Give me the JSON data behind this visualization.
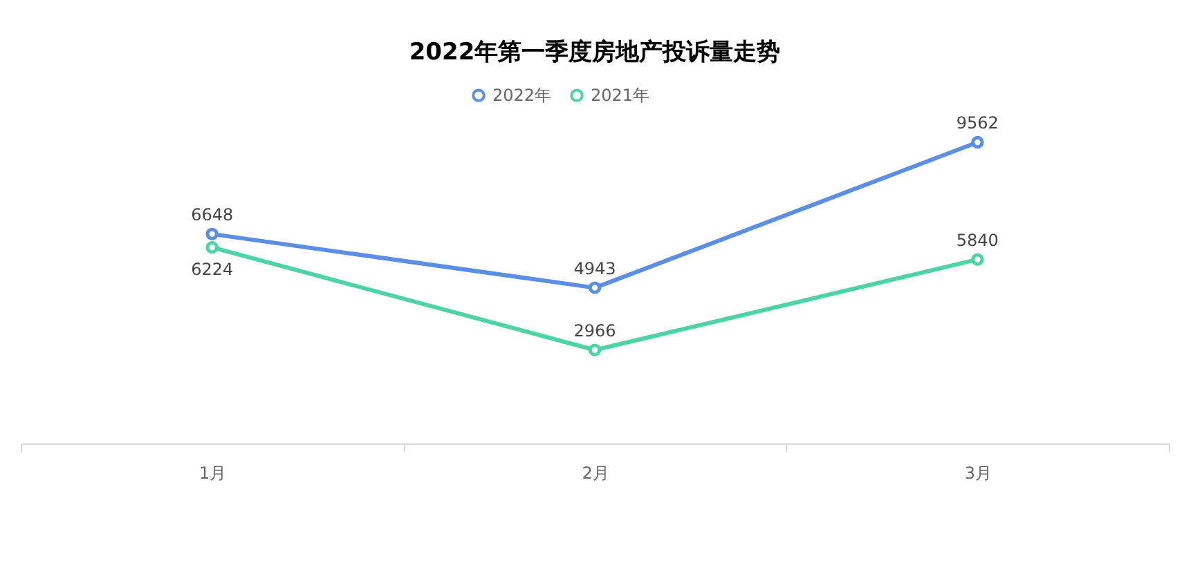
{
  "chart_data": {
    "type": "line",
    "title": "2022年第一季度房地产投诉量走势",
    "categories": [
      "1月",
      "2月",
      "3月"
    ],
    "series": [
      {
        "name": "2022年",
        "color": "#5b8ee6",
        "values": [
          6648,
          4943,
          9562
        ]
      },
      {
        "name": "2021年",
        "color": "#4cd4a4",
        "values": [
          6224,
          2966,
          5840
        ]
      }
    ],
    "data_labels": true,
    "marker": "circle",
    "legend": "top"
  }
}
